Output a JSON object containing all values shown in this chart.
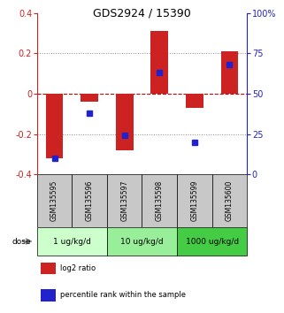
{
  "title": "GDS2924 / 15390",
  "samples": [
    "GSM135595",
    "GSM135596",
    "GSM135597",
    "GSM135598",
    "GSM135599",
    "GSM135600"
  ],
  "log2_ratio": [
    -0.32,
    -0.04,
    -0.28,
    0.31,
    -0.07,
    0.21
  ],
  "percentile_rank": [
    10,
    38,
    24,
    63,
    20,
    68
  ],
  "dose_groups": [
    {
      "label": "1 ug/kg/d",
      "samples": [
        0,
        1
      ],
      "color": "#ccffcc"
    },
    {
      "label": "10 ug/kg/d",
      "samples": [
        2,
        3
      ],
      "color": "#99ee99"
    },
    {
      "label": "1000 ug/kg/d",
      "samples": [
        4,
        5
      ],
      "color": "#44cc44"
    }
  ],
  "ylim_left": [
    -0.4,
    0.4
  ],
  "ylim_right": [
    0,
    100
  ],
  "yticks_left": [
    -0.4,
    -0.2,
    0.0,
    0.2,
    0.4
  ],
  "ytick_labels_left": [
    "-0.4",
    "-0.2",
    "0",
    "0.2",
    "0.4"
  ],
  "yticks_right": [
    0,
    25,
    50,
    75,
    100
  ],
  "ytick_labels_right": [
    "0",
    "25",
    "50",
    "75",
    "100%"
  ],
  "bar_color_red": "#cc2222",
  "dot_color_blue": "#2222cc",
  "zero_line_color": "#cc0000",
  "dotted_line_color": "#888888",
  "sample_box_color": "#c8c8c8",
  "legend_red_label": "log2 ratio",
  "legend_blue_label": "percentile rank within the sample",
  "figwidth": 3.21,
  "figheight": 3.54,
  "dpi": 100
}
